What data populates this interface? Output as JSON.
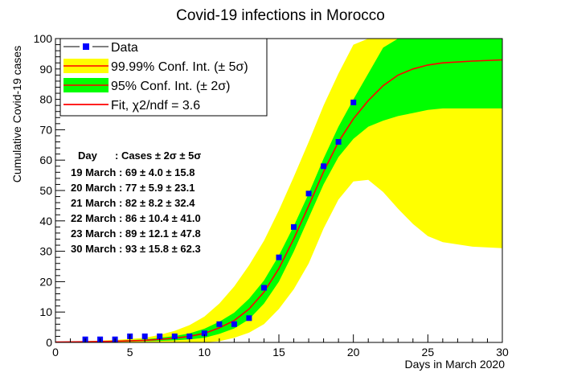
{
  "chart_data": {
    "type": "scatter",
    "title": "Covid-19 infections in Morocco",
    "xlabel": "Days in March 2020",
    "ylabel": "Cumulative Covid-19 cases",
    "xlim": [
      0,
      30
    ],
    "ylim": [
      0,
      100
    ],
    "x_ticks": [
      0,
      5,
      10,
      15,
      20,
      25,
      30
    ],
    "y_ticks": [
      0,
      10,
      20,
      30,
      40,
      50,
      60,
      70,
      80,
      90,
      100
    ],
    "grid": false,
    "legend_position": "top-left",
    "legend": [
      {
        "label": "Data",
        "kind": "marker",
        "color": "#0000ff"
      },
      {
        "label": "99.99% Conf. Int. (± 5σ)",
        "kind": "band",
        "color": "#ffff00",
        "line_color": "#ff0000"
      },
      {
        "label": "95% Conf. Int. (± 2σ)",
        "kind": "band",
        "color": "#00ff00",
        "line_color": "#ff0000"
      },
      {
        "label": "Fit, χ2/ndf = 3.6",
        "kind": "line",
        "color": "#ff0000"
      }
    ],
    "data_points": {
      "name": "Data",
      "color": "#0000ff",
      "x": [
        2,
        3,
        4,
        5,
        6,
        7,
        8,
        9,
        10,
        11,
        12,
        13,
        14,
        15,
        16,
        17,
        18,
        19,
        20
      ],
      "y": [
        1,
        1,
        1,
        2,
        2,
        2,
        2,
        2,
        3,
        6,
        6,
        8,
        18,
        28,
        38,
        49,
        58,
        66,
        79
      ]
    },
    "fit": {
      "name": "Fit, χ2/ndf = 3.6",
      "color": "#ff0000",
      "x": [
        0,
        2,
        4,
        6,
        7,
        8,
        9,
        10,
        11,
        12,
        13,
        14,
        15,
        16,
        17,
        18,
        19,
        20,
        21,
        22,
        23,
        24,
        25,
        26,
        28,
        30
      ],
      "y": [
        0.1,
        0.2,
        0.4,
        0.7,
        1.0,
        1.4,
        2.0,
        3.0,
        4.8,
        7.2,
        11.0,
        16.6,
        24.3,
        34.1,
        45.0,
        56.2,
        66.0,
        73.6,
        79.6,
        84.5,
        88.0,
        90.0,
        91.3,
        92.0,
        92.6,
        93.0
      ]
    },
    "band_5sigma": {
      "name": "99.99% Conf. Int. (± 5σ)",
      "color": "#ffff00",
      "x": [
        0,
        2,
        4,
        6,
        7,
        8,
        9,
        10,
        11,
        12,
        13,
        14,
        15,
        16,
        17,
        18,
        19,
        20,
        21,
        22,
        23,
        24,
        25,
        26,
        28,
        30
      ],
      "upper": [
        0.2,
        0.4,
        0.8,
        1.5,
        2.5,
        3.8,
        5.7,
        8.5,
        12.8,
        18.4,
        25.4,
        33.5,
        43.5,
        54.5,
        66.0,
        78.0,
        88.5,
        98.0,
        100,
        100,
        100,
        100,
        100,
        100,
        100,
        100
      ],
      "lower": [
        0,
        0,
        0,
        0,
        0,
        0,
        0,
        0,
        0.4,
        1.5,
        3.2,
        6.0,
        11.0,
        17.5,
        26.0,
        37.5,
        47.0,
        53.0,
        53.5,
        49.5,
        44.0,
        39.0,
        35.0,
        33.0,
        31.5,
        31.0
      ]
    },
    "band_2sigma": {
      "name": "95% Conf. Int. (± 2σ)",
      "color": "#00ff00",
      "x": [
        0,
        2,
        4,
        6,
        7,
        8,
        9,
        10,
        11,
        12,
        13,
        14,
        15,
        16,
        17,
        18,
        19,
        20,
        21,
        22,
        23,
        24,
        25,
        26,
        28,
        30
      ],
      "upper": [
        0.15,
        0.3,
        0.55,
        1.0,
        1.5,
        2.1,
        3.0,
        4.5,
        6.8,
        9.8,
        14.4,
        20.4,
        28.6,
        38.3,
        49.0,
        60.5,
        71.0,
        80.0,
        88.5,
        97.0,
        100,
        100,
        100,
        100,
        100,
        100
      ],
      "lower": [
        0.05,
        0.1,
        0.25,
        0.4,
        0.5,
        0.7,
        1.0,
        1.5,
        2.8,
        4.6,
        7.6,
        12.8,
        20.0,
        29.9,
        41.0,
        52.0,
        61.0,
        67.0,
        71.0,
        73.0,
        74.5,
        75.5,
        76.5,
        77.0,
        77.0,
        77.0
      ]
    },
    "annotation_table": {
      "header_day": "Day",
      "header_cases": ": Cases ± 2σ ± 5σ",
      "rows": [
        "19 March : 69 ± 4.0 ± 15.8",
        "20 March : 77 ± 5.9 ± 23.1",
        "21 March : 82 ± 8.2 ± 32.4",
        "22 March : 86 ± 10.4 ± 41.0",
        "23 March : 89 ± 12.1 ± 47.8",
        "30 March : 93 ± 15.8 ± 62.3"
      ]
    }
  }
}
